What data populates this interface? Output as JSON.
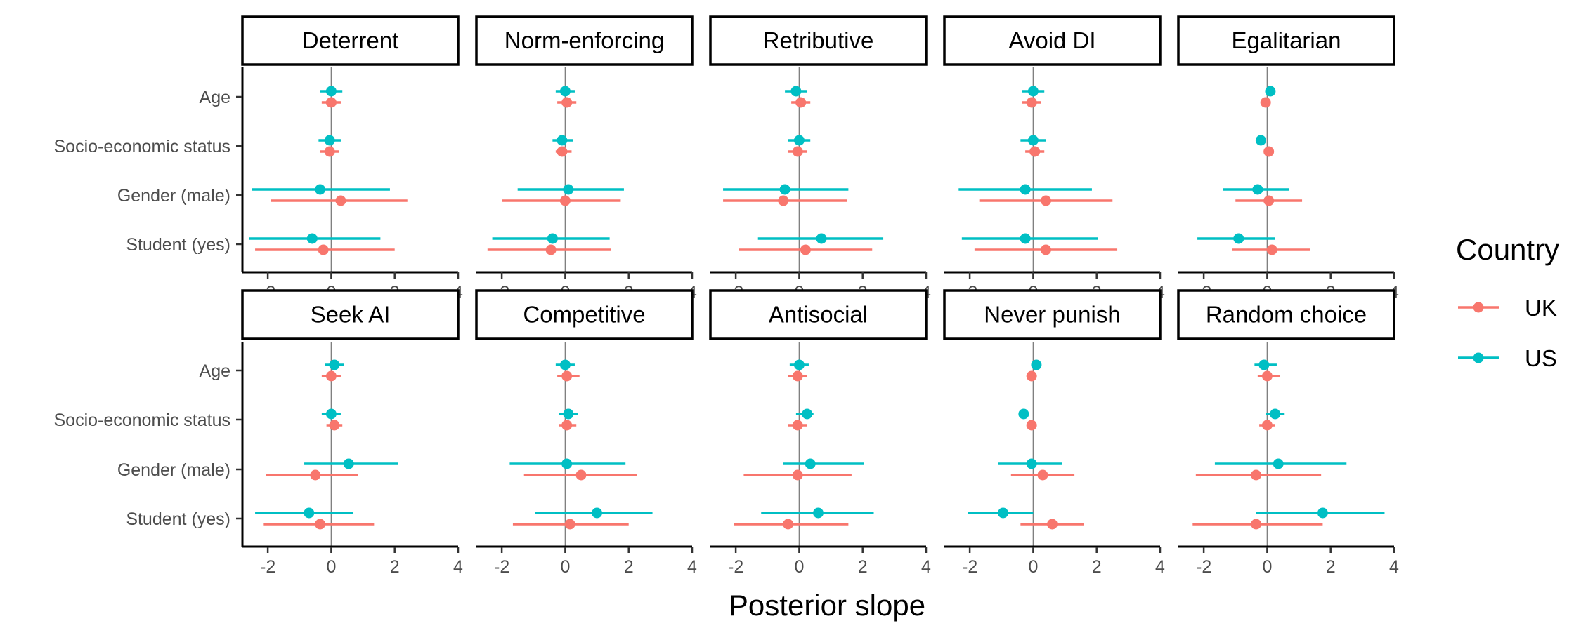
{
  "chart_data": {
    "type": "faceted-pointrange",
    "xlabel": "Posterior slope",
    "ylabel": "",
    "xlim": [
      -2.8,
      4
    ],
    "x_ticks": [
      -2,
      0,
      2,
      4
    ],
    "x_tick_labels": [
      "-2",
      "0",
      "2",
      "4"
    ],
    "categories": [
      "Age",
      "Socio-economic status",
      "Gender (male)",
      "Student (yes)"
    ],
    "legend": {
      "title": "Country",
      "position": "right",
      "entries": [
        {
          "name": "UK",
          "color": "#F8766D"
        },
        {
          "name": "US",
          "color": "#00BFC4"
        }
      ]
    },
    "colors": {
      "UK": "#F8766D",
      "US": "#00BFC4"
    },
    "facets": [
      {
        "name": "Deterrent",
        "series": {
          "US": [
            {
              "est": 0.0,
              "lo": -0.35,
              "hi": 0.35
            },
            {
              "est": -0.05,
              "lo": -0.4,
              "hi": 0.3
            },
            {
              "est": -0.35,
              "lo": -2.5,
              "hi": 1.85
            },
            {
              "est": -0.6,
              "lo": -2.6,
              "hi": 1.55
            }
          ],
          "UK": [
            {
              "est": 0.0,
              "lo": -0.3,
              "hi": 0.3
            },
            {
              "est": -0.05,
              "lo": -0.35,
              "hi": 0.25
            },
            {
              "est": 0.3,
              "lo": -1.9,
              "hi": 2.4
            },
            {
              "est": -0.25,
              "lo": -2.4,
              "hi": 2.0
            }
          ]
        }
      },
      {
        "name": "Norm-enforcing",
        "series": {
          "US": [
            {
              "est": 0.0,
              "lo": -0.3,
              "hi": 0.3
            },
            {
              "est": -0.1,
              "lo": -0.4,
              "hi": 0.25
            },
            {
              "est": 0.1,
              "lo": -1.5,
              "hi": 1.85
            },
            {
              "est": -0.4,
              "lo": -2.3,
              "hi": 1.4
            }
          ],
          "UK": [
            {
              "est": 0.05,
              "lo": -0.25,
              "hi": 0.35
            },
            {
              "est": -0.1,
              "lo": -0.3,
              "hi": 0.2
            },
            {
              "est": 0.0,
              "lo": -2.0,
              "hi": 1.75
            },
            {
              "est": -0.45,
              "lo": -2.45,
              "hi": 1.45
            }
          ]
        }
      },
      {
        "name": "Retributive",
        "series": {
          "US": [
            {
              "est": -0.1,
              "lo": -0.45,
              "hi": 0.25
            },
            {
              "est": 0.0,
              "lo": -0.35,
              "hi": 0.35
            },
            {
              "est": -0.45,
              "lo": -2.4,
              "hi": 1.55
            },
            {
              "est": 0.7,
              "lo": -1.3,
              "hi": 2.65
            }
          ],
          "UK": [
            {
              "est": 0.05,
              "lo": -0.25,
              "hi": 0.35
            },
            {
              "est": -0.05,
              "lo": -0.35,
              "hi": 0.25
            },
            {
              "est": -0.5,
              "lo": -2.4,
              "hi": 1.5
            },
            {
              "est": 0.2,
              "lo": -1.9,
              "hi": 2.3
            }
          ]
        }
      },
      {
        "name": "Avoid DI",
        "series": {
          "US": [
            {
              "est": 0.0,
              "lo": -0.35,
              "hi": 0.35
            },
            {
              "est": 0.0,
              "lo": -0.4,
              "hi": 0.4
            },
            {
              "est": -0.25,
              "lo": -2.35,
              "hi": 1.85
            },
            {
              "est": -0.25,
              "lo": -2.25,
              "hi": 2.05
            }
          ],
          "UK": [
            {
              "est": -0.05,
              "lo": -0.35,
              "hi": 0.25
            },
            {
              "est": 0.05,
              "lo": -0.25,
              "hi": 0.35
            },
            {
              "est": 0.4,
              "lo": -1.7,
              "hi": 2.5
            },
            {
              "est": 0.4,
              "lo": -1.85,
              "hi": 2.65
            }
          ]
        }
      },
      {
        "name": "Egalitarian",
        "series": {
          "US": [
            {
              "est": 0.1,
              "lo": 0.05,
              "hi": 0.15
            },
            {
              "est": -0.2,
              "lo": -0.3,
              "hi": -0.1
            },
            {
              "est": -0.3,
              "lo": -1.4,
              "hi": 0.7
            },
            {
              "est": -0.9,
              "lo": -2.2,
              "hi": 0.25
            }
          ],
          "UK": [
            {
              "est": -0.05,
              "lo": -0.15,
              "hi": 0.05
            },
            {
              "est": 0.05,
              "lo": -0.05,
              "hi": 0.15
            },
            {
              "est": 0.05,
              "lo": -1.0,
              "hi": 1.1
            },
            {
              "est": 0.15,
              "lo": -1.1,
              "hi": 1.35
            }
          ]
        }
      },
      {
        "name": "Seek AI",
        "series": {
          "US": [
            {
              "est": 0.1,
              "lo": -0.2,
              "hi": 0.4
            },
            {
              "est": 0.0,
              "lo": -0.3,
              "hi": 0.3
            },
            {
              "est": 0.55,
              "lo": -0.85,
              "hi": 2.1
            },
            {
              "est": -0.7,
              "lo": -2.4,
              "hi": 0.7
            }
          ],
          "UK": [
            {
              "est": 0.0,
              "lo": -0.3,
              "hi": 0.3
            },
            {
              "est": 0.1,
              "lo": -0.15,
              "hi": 0.35
            },
            {
              "est": -0.5,
              "lo": -2.05,
              "hi": 0.85
            },
            {
              "est": -0.35,
              "lo": -2.15,
              "hi": 1.35
            }
          ]
        }
      },
      {
        "name": "Competitive",
        "series": {
          "US": [
            {
              "est": 0.0,
              "lo": -0.3,
              "hi": 0.3
            },
            {
              "est": 0.1,
              "lo": -0.2,
              "hi": 0.4
            },
            {
              "est": 0.05,
              "lo": -1.75,
              "hi": 1.9
            },
            {
              "est": 1.0,
              "lo": -0.95,
              "hi": 2.75
            }
          ],
          "UK": [
            {
              "est": 0.05,
              "lo": -0.25,
              "hi": 0.45
            },
            {
              "est": 0.05,
              "lo": -0.2,
              "hi": 0.35
            },
            {
              "est": 0.5,
              "lo": -1.3,
              "hi": 2.25
            },
            {
              "est": 0.15,
              "lo": -1.65,
              "hi": 2.0
            }
          ]
        }
      },
      {
        "name": "Antisocial",
        "series": {
          "US": [
            {
              "est": 0.0,
              "lo": -0.3,
              "hi": 0.3
            },
            {
              "est": 0.25,
              "lo": -0.1,
              "hi": 0.45
            },
            {
              "est": 0.35,
              "lo": -0.5,
              "hi": 2.05
            },
            {
              "est": 0.6,
              "lo": -1.2,
              "hi": 2.35
            }
          ],
          "UK": [
            {
              "est": -0.05,
              "lo": -0.35,
              "hi": 0.25
            },
            {
              "est": -0.05,
              "lo": -0.35,
              "hi": 0.25
            },
            {
              "est": -0.05,
              "lo": -1.75,
              "hi": 1.65
            },
            {
              "est": -0.35,
              "lo": -2.05,
              "hi": 1.55
            }
          ]
        }
      },
      {
        "name": "Never punish",
        "series": {
          "US": [
            {
              "est": 0.1,
              "lo": 0.05,
              "hi": 0.15
            },
            {
              "est": -0.3,
              "lo": -0.35,
              "hi": -0.2
            },
            {
              "est": -0.05,
              "lo": -1.1,
              "hi": 0.9
            },
            {
              "est": -0.95,
              "lo": -2.05,
              "hi": 0.0
            }
          ],
          "UK": [
            {
              "est": -0.05,
              "lo": -0.1,
              "hi": 0.0
            },
            {
              "est": -0.05,
              "lo": -0.1,
              "hi": 0.0
            },
            {
              "est": 0.3,
              "lo": -0.7,
              "hi": 1.3
            },
            {
              "est": 0.6,
              "lo": -0.4,
              "hi": 1.6
            }
          ]
        }
      },
      {
        "name": "Random choice",
        "series": {
          "US": [
            {
              "est": -0.1,
              "lo": -0.4,
              "hi": 0.3
            },
            {
              "est": 0.25,
              "lo": -0.05,
              "hi": 0.55
            },
            {
              "est": 0.35,
              "lo": -1.65,
              "hi": 2.5
            },
            {
              "est": 1.75,
              "lo": -0.35,
              "hi": 3.7
            }
          ],
          "UK": [
            {
              "est": 0.0,
              "lo": -0.3,
              "hi": 0.4
            },
            {
              "est": 0.0,
              "lo": -0.25,
              "hi": 0.25
            },
            {
              "est": -0.35,
              "lo": -2.25,
              "hi": 1.7
            },
            {
              "est": -0.35,
              "lo": -2.35,
              "hi": 1.75
            }
          ]
        }
      }
    ]
  }
}
